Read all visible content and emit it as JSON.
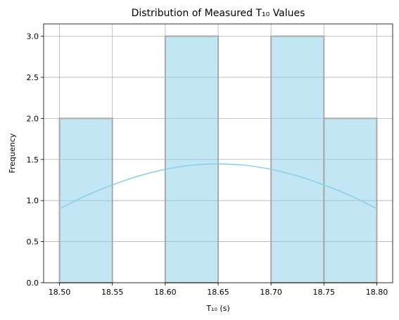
{
  "chart_data": {
    "type": "bar",
    "title": "Distribution of Measured T₁₀ Values",
    "xlabel": "T₁₀ (s)",
    "ylabel": "Frequency",
    "xlim": [
      18.485,
      18.815
    ],
    "ylim": [
      0,
      3.15
    ],
    "xticks": [
      18.5,
      18.55,
      18.6,
      18.65,
      18.7,
      18.75,
      18.8
    ],
    "xtick_labels": [
      "18.50",
      "18.55",
      "18.60",
      "18.65",
      "18.70",
      "18.75",
      "18.80"
    ],
    "yticks": [
      0.0,
      0.5,
      1.0,
      1.5,
      2.0,
      2.5,
      3.0
    ],
    "ytick_labels": [
      "0.0",
      "0.5",
      "1.0",
      "1.5",
      "2.0",
      "2.5",
      "3.0"
    ],
    "grid": true,
    "bins": [
      {
        "x0": 18.5,
        "x1": 18.55,
        "count": 2
      },
      {
        "x0": 18.55,
        "x1": 18.6,
        "count": 0
      },
      {
        "x0": 18.6,
        "x1": 18.65,
        "count": 3
      },
      {
        "x0": 18.65,
        "x1": 18.7,
        "count": 0
      },
      {
        "x0": 18.7,
        "x1": 18.75,
        "count": 3
      },
      {
        "x0": 18.75,
        "x1": 18.8,
        "count": 2
      }
    ],
    "kde": {
      "x": [
        18.5,
        18.525,
        18.55,
        18.575,
        18.6,
        18.625,
        18.65,
        18.675,
        18.7,
        18.725,
        18.75,
        18.775,
        18.8
      ],
      "y": [
        0.9,
        1.06,
        1.19,
        1.3,
        1.38,
        1.43,
        1.445,
        1.43,
        1.38,
        1.3,
        1.19,
        1.06,
        0.9
      ]
    },
    "colors": {
      "bar_fill": "#87ceeb",
      "bar_edge": "#a9a9a9",
      "kde_line": "#87ceeb"
    }
  }
}
